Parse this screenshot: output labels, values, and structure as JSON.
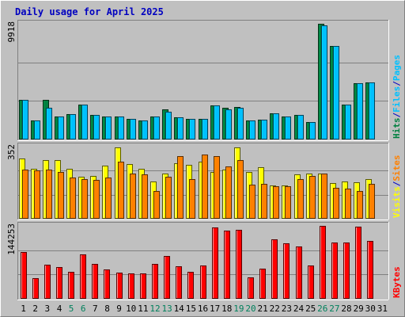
{
  "colors": {
    "background": "#c0c0c0",
    "title": "#0000c0",
    "hits": "#008040",
    "files": "#00c0ff",
    "sites": "#ff8000",
    "visits": "#ffff00",
    "kbytes": "#ff0000",
    "weekend_label": "#00805c",
    "today_label": "#000000",
    "grid": "#808080"
  },
  "chart_data": {
    "type": "bar",
    "title": "Daily usage for April 2025",
    "categories": [
      "1",
      "2",
      "3",
      "4",
      "5",
      "6",
      "7",
      "8",
      "9",
      "10",
      "11",
      "12",
      "13",
      "14",
      "15",
      "16",
      "17",
      "18",
      "19",
      "20",
      "21",
      "22",
      "23",
      "24",
      "25",
      "26",
      "27",
      "28",
      "29",
      "30",
      "31"
    ],
    "weekend_days": [
      "5",
      "6",
      "12",
      "13",
      "19",
      "20",
      "26",
      "27"
    ],
    "panels": [
      {
        "id": "hits_files",
        "max_label": "9918",
        "ymax": 9918,
        "axis_label_parts": [
          {
            "text": "Hits",
            "color_key": "hits"
          },
          {
            "text": "/",
            "color_key": "title"
          },
          {
            "text": "Files",
            "color_key": "files"
          },
          {
            "text": "/",
            "color_key": "title"
          },
          {
            "text": "Pages",
            "color_key": "files"
          }
        ],
        "series": [
          {
            "name": "Hits",
            "color_key": "hits",
            "values": [
              3400,
              1600,
              3400,
              2000,
              2200,
              3000,
              2100,
              2000,
              2000,
              1800,
              1600,
              2000,
              2600,
              1900,
              1800,
              1800,
              2900,
              2700,
              2800,
              1650,
              1700,
              2250,
              2000,
              2100,
              1500,
              9900,
              8000,
              3000,
              4850,
              4900,
              0
            ]
          },
          {
            "name": "Files",
            "color_key": "files",
            "values": [
              3400,
              1600,
              2700,
              2000,
              2200,
              3000,
              2100,
              2000,
              2000,
              1800,
              1600,
              2000,
              2400,
              1900,
              1800,
              1800,
              2900,
              2600,
              2700,
              1650,
              1700,
              2250,
              2000,
              2100,
              1500,
              9800,
              8000,
              3000,
              4850,
              4900,
              0
            ]
          }
        ]
      },
      {
        "id": "visits_sites",
        "max_label": "352",
        "ymax": 352,
        "axis_label_parts": [
          {
            "text": "Visits",
            "color_key": "visits"
          },
          {
            "text": "/",
            "color_key": "title"
          },
          {
            "text": "Sites",
            "color_key": "sites"
          }
        ],
        "series": [
          {
            "name": "Visits",
            "color_key": "visits",
            "values": [
              295,
              242,
              285,
              285,
              242,
              205,
              210,
              260,
              350,
              265,
              242,
              180,
              222,
              270,
              262,
              278,
              228,
              240,
              350,
              230,
              250,
              162,
              162,
              217,
              222,
              222,
              175,
              182,
              178,
              195,
              0
            ]
          },
          {
            "name": "Sites",
            "color_key": "sites",
            "values": [
              240,
              235,
              240,
              230,
              200,
              195,
              190,
              200,
              280,
              220,
              215,
              135,
              205,
              305,
              195,
              315,
              305,
              255,
              285,
              165,
              170,
              158,
              160,
              195,
              210,
              222,
              150,
              148,
              135,
              170,
              0
            ]
          }
        ]
      },
      {
        "id": "kbytes",
        "max_label": "144253",
        "ymax": 144253,
        "axis_label_parts": [
          {
            "text": "KBytes",
            "color_key": "kbytes"
          }
        ],
        "series": [
          {
            "name": "KBytes",
            "color_key": "kbytes",
            "values": [
              92000,
              41000,
              68000,
              63000,
              54000,
              88000,
              69000,
              58000,
              51000,
              50000,
              50000,
              69000,
              85000,
              64000,
              53000,
              66000,
              141000,
              135000,
              137000,
              43000,
              60000,
              117000,
              110000,
              103000,
              66000,
              144000,
              111000,
              112000,
              143000,
              115000,
              0
            ]
          }
        ]
      }
    ]
  }
}
